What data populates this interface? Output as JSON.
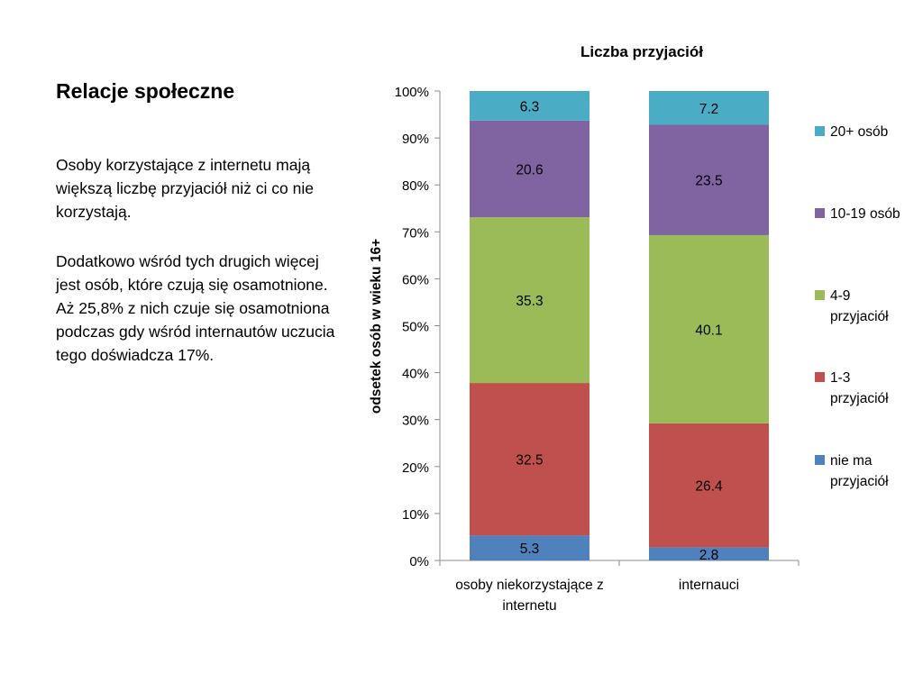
{
  "slide": {
    "title": "Relacje społeczne",
    "paragraphs": [
      "Osoby korzystające z internetu mają większą liczbę przyjaciół niż ci co nie korzystają.",
      "Dodatkowo wśród tych drugich więcej jest osób, które czują się osamotnione. Aż 25,8% z nich czuje się osamotniona podczas gdy wśród internautów uczucia tego doświadcza 17%."
    ]
  },
  "chart_data": {
    "type": "bar",
    "stacked": true,
    "percent_stacked": true,
    "title": "Liczba przyjaciół",
    "xlabel": "",
    "ylabel": "odsetek osób w wieku 16+",
    "ylim": [
      0,
      100
    ],
    "yticks": [
      "0%",
      "10%",
      "20%",
      "30%",
      "40%",
      "50%",
      "60%",
      "70%",
      "80%",
      "90%",
      "100%"
    ],
    "categories": [
      "osoby niekorzystające z internetu",
      "internauci"
    ],
    "category_label_lines": [
      [
        "osoby niekorzystające z",
        "internetu"
      ],
      [
        "internauci"
      ]
    ],
    "series": [
      {
        "name": "nie ma przyjaciół",
        "legend_lines": [
          "nie ma",
          "przyjaciół"
        ],
        "color": "#4F81BD",
        "values": [
          5.3,
          2.8
        ],
        "labels": [
          "5.3",
          "2.8"
        ]
      },
      {
        "name": "1-3 przyjaciół",
        "legend_lines": [
          "1-3",
          "przyjaciół"
        ],
        "color": "#C0504D",
        "values": [
          32.5,
          26.4
        ],
        "labels": [
          "32.5",
          "26.4"
        ]
      },
      {
        "name": "4-9 przyjaciół",
        "legend_lines": [
          "4-9",
          "przyjaciół"
        ],
        "color": "#9BBB59",
        "values": [
          35.3,
          40.1
        ],
        "labels": [
          "35.3",
          "40.1"
        ]
      },
      {
        "name": "10-19 osób",
        "legend_lines": [
          "10-19 osób"
        ],
        "color": "#8064A2",
        "values": [
          20.6,
          23.5
        ],
        "labels": [
          "20.6",
          "23.5"
        ]
      },
      {
        "name": "20+ osób",
        "legend_lines": [
          "20+ osób"
        ],
        "color": "#4BACC6",
        "values": [
          6.3,
          7.2
        ],
        "labels": [
          "6.3",
          "7.2"
        ]
      }
    ],
    "legend_position": "right",
    "grid": false
  }
}
